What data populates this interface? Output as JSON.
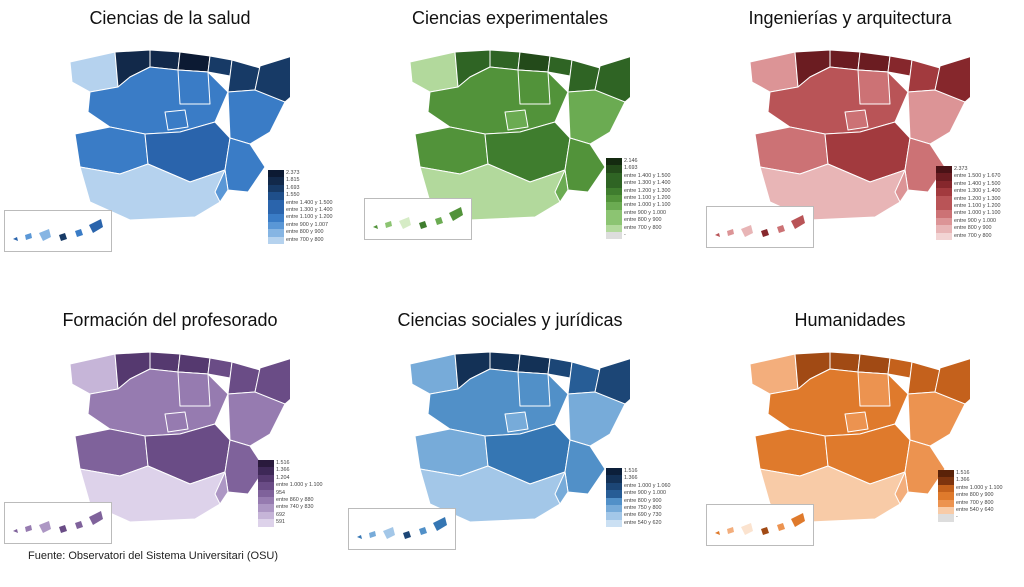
{
  "source": "Fuente: Observatori del Sistema Universitari (OSU)",
  "maps": [
    {
      "id": "salud",
      "title": "Ciencias de la salud",
      "colors": [
        "#0c1a33",
        "#12294a",
        "#173a66",
        "#1f4f8a",
        "#2a64ac",
        "#3a7cc6",
        "#5a97d6",
        "#86b5e3",
        "#b5d2ee"
      ],
      "legend": [
        "2.373",
        "1.815",
        "1.693",
        "1.550",
        "entre 1.400 y 1.500",
        "entre 1.300 y 1.400",
        "entre 1.100 y 1.200",
        "entre 900 y 1.007",
        "entre 800 y 900",
        "entre 700 y 800"
      ]
    },
    {
      "id": "experimentales",
      "title": "Ciencias experimentales",
      "colors": [
        "#142a10",
        "#234a1a",
        "#2f6424",
        "#3f7d2e",
        "#52933a",
        "#6bab52",
        "#8cc472",
        "#b2d99c",
        "#d6ecc6"
      ],
      "legend": [
        "2.146",
        "1.693",
        "entre 1.400 y 1.500",
        "entre 1.300 y 1.400",
        "entre 1.200 y 1.300",
        "entre 1.100 y 1.200",
        "entre 1.000 y 1.100",
        "entre 900 y 1.000",
        "entre 800 y 900",
        "entre 700 y 800",
        "-"
      ]
    },
    {
      "id": "ingenierias",
      "title": "Ingenierías y arquitectura",
      "colors": [
        "#4a1216",
        "#6b1c21",
        "#86272c",
        "#a23a3e",
        "#b95457",
        "#cc7275",
        "#dc9496",
        "#e8b5b6",
        "#f2d4d4"
      ],
      "legend": [
        "2.373",
        "entre 1.500 y 1.670",
        "entre 1.400 y 1.500",
        "entre 1.300 y 1.400",
        "entre 1.200 y 1.300",
        "entre 1.100 y 1.200",
        "entre 1.000 y 1.100",
        "entre 900 y 1.000",
        "entre 800 y 900",
        "entre 700 y 800"
      ]
    },
    {
      "id": "profesorado",
      "title": "Formación del profesorado",
      "colors": [
        "#2a1a3d",
        "#3e2857",
        "#55396f",
        "#6a4c86",
        "#7f629b",
        "#967bb0",
        "#ad97c4",
        "#c6b5d8",
        "#ddd2ea"
      ],
      "legend": [
        "1.516",
        "1.366",
        "1.204",
        "entre 1.000 y 1.100",
        "954",
        "entre 860 y 880",
        "entre 740 y 830",
        "692",
        "591"
      ]
    },
    {
      "id": "sociales",
      "title": "Ciencias sociales y jurídicas",
      "colors": [
        "#0c1f3a",
        "#133156",
        "#1c4676",
        "#275d96",
        "#3576b3",
        "#5190c8",
        "#77abd9",
        "#a3c7e8",
        "#cbe0f3"
      ],
      "legend": [
        "1.516",
        "1.366",
        "entre 1.000 y 1.060",
        "entre 900 y 1.000",
        "entre 800 y 900",
        "entre 750 y 800",
        "entre 690 y 730",
        "entre 540 y 620"
      ]
    },
    {
      "id": "humanidades",
      "title": "Humanidades",
      "colors": [
        "#5a2208",
        "#7e340e",
        "#a14a14",
        "#c4611c",
        "#df7a2c",
        "#ec9350",
        "#f3ae7c",
        "#f8cba7",
        "#fbe3cf"
      ],
      "legend": [
        "1.516",
        "1.366",
        "entre 1.000 y 1.100",
        "entre 800 y 900",
        "entre 700 y 800",
        "entre 540 y 640",
        "-"
      ]
    }
  ],
  "region_shades": {
    "salud": [
      8,
      1,
      1,
      0,
      2,
      2,
      2,
      5,
      5,
      5,
      5,
      5,
      4,
      5,
      6,
      8,
      3,
      0,
      1,
      1,
      3,
      4,
      6,
      7,
      2,
      5
    ],
    "experimentales": [
      7,
      2,
      2,
      1,
      2,
      2,
      2,
      4,
      4,
      5,
      5,
      4,
      3,
      4,
      5,
      7,
      3,
      0,
      1,
      2,
      3,
      4,
      6,
      8,
      3,
      5
    ],
    "ingenierias": [
      6,
      1,
      1,
      1,
      2,
      3,
      2,
      4,
      5,
      5,
      6,
      5,
      3,
      5,
      6,
      7,
      3,
      1,
      1,
      2,
      3,
      4,
      6,
      7,
      2,
      5
    ],
    "profesorado": [
      7,
      2,
      2,
      2,
      3,
      3,
      3,
      5,
      5,
      5,
      5,
      4,
      3,
      4,
      6,
      8,
      3,
      1,
      1,
      2,
      3,
      4,
      5,
      6,
      3,
      4
    ],
    "sociales": [
      6,
      1,
      1,
      1,
      2,
      3,
      2,
      5,
      5,
      6,
      6,
      6,
      4,
      5,
      6,
      7,
      3,
      0,
      1,
      2,
      3,
      4,
      6,
      7,
      2,
      5
    ],
    "humanidades": [
      6,
      2,
      2,
      2,
      3,
      3,
      3,
      4,
      5,
      5,
      5,
      4,
      4,
      5,
      6,
      7,
      3,
      1,
      1,
      2,
      3,
      4,
      6,
      8,
      2,
      5
    ]
  }
}
